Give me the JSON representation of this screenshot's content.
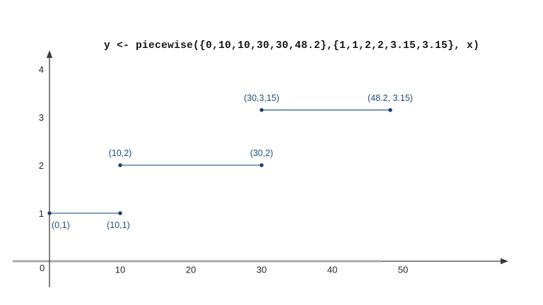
{
  "chart_data": {
    "type": "line",
    "title": "y <- piecewise({0,10,10,30,30,48.2},{1,1,2,2,3.15,3.15}, x)",
    "description": "Piecewise constant step function drawn as three horizontal segments with dotted, labeled endpoints",
    "segments": [
      {
        "points": [
          {
            "x": 0,
            "y": 1,
            "label": "(0,1)",
            "label_side": "below-right"
          },
          {
            "x": 10,
            "y": 1,
            "label": "(10,1)",
            "label_side": "below"
          }
        ]
      },
      {
        "points": [
          {
            "x": 10,
            "y": 2,
            "label": "(10,2)",
            "label_side": "above"
          },
          {
            "x": 30,
            "y": 2,
            "label": "(30,2)",
            "label_side": "above"
          }
        ]
      },
      {
        "points": [
          {
            "x": 30,
            "y": 3.15,
            "label": "(30,3,15)",
            "label_side": "above"
          },
          {
            "x": 48.2,
            "y": 3.15,
            "label": "(48.2, 3.15)",
            "label_side": "above"
          }
        ]
      }
    ],
    "x_ticks": [
      "10",
      "20",
      "30",
      "40",
      "50"
    ],
    "x_tick_values": [
      10,
      20,
      30,
      40,
      50
    ],
    "y_ticks": [
      "1",
      "2",
      "3",
      "4"
    ],
    "y_tick_values": [
      1,
      2,
      3,
      4
    ],
    "origin_label": "0",
    "xlim": [
      0,
      64
    ],
    "ylim": [
      0,
      4.4
    ],
    "grid": false,
    "legend": false,
    "colors": {
      "data_line": "#3a6795",
      "data_dot": "#1c3e66",
      "data_label": "#1f4e79",
      "axis": "#3c3c3c",
      "axis_gray_overlay": "#a9a9a9",
      "tick_label": "#262626",
      "title": "#151515",
      "background": "#ffffff"
    }
  }
}
